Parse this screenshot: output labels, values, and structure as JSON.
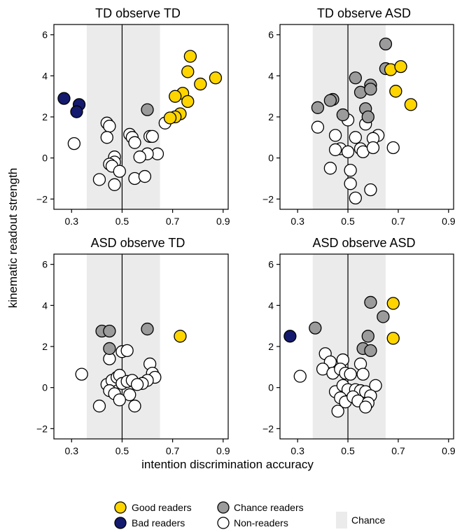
{
  "figure": {
    "xlabel": "intention discrimination accuracy",
    "ylabel": "kinematic readout strength",
    "xticks": [
      0.3,
      0.5,
      0.7,
      0.9
    ],
    "yticks": [
      -2,
      0,
      2,
      4,
      6
    ]
  },
  "legend": {
    "items": [
      {
        "label": "Good readers",
        "color": "#ffd500"
      },
      {
        "label": "Chance readers",
        "color": "#9b9b9b"
      },
      {
        "label": "Bad readers",
        "color": "#141a6e"
      },
      {
        "label": "Non-readers",
        "color": "#ffffff"
      },
      {
        "label": "Chance",
        "color": "#ebebeb"
      }
    ]
  },
  "colors": {
    "good": "#ffd500",
    "chance": "#9b9b9b",
    "bad": "#141a6e",
    "non": "#ffffff",
    "chance_band": "#ebebeb"
  },
  "chart_data": [
    {
      "type": "scatter",
      "title": "TD observe TD",
      "xlim": [
        0.23,
        0.92
      ],
      "ylim": [
        -2.5,
        6.5
      ],
      "chance_band": [
        0.36,
        0.65
      ],
      "vline": 0.5,
      "series": [
        {
          "name": "Good readers",
          "color": "#ffd500",
          "points": [
            [
              0.77,
              4.95
            ],
            [
              0.76,
              4.2
            ],
            [
              0.87,
              3.9
            ],
            [
              0.81,
              3.6
            ],
            [
              0.74,
              3.15
            ],
            [
              0.71,
              3.0
            ],
            [
              0.76,
              2.75
            ],
            [
              0.73,
              2.15
            ],
            [
              0.71,
              2.0
            ],
            [
              0.69,
              1.95
            ]
          ]
        },
        {
          "name": "Chance readers",
          "color": "#9b9b9b",
          "points": [
            [
              0.6,
              2.35
            ]
          ]
        },
        {
          "name": "Bad readers",
          "color": "#141a6e",
          "points": [
            [
              0.27,
              2.9
            ],
            [
              0.33,
              2.6
            ],
            [
              0.32,
              2.25
            ]
          ]
        },
        {
          "name": "Non-readers",
          "color": "#ffffff",
          "points": [
            [
              0.67,
              1.7
            ],
            [
              0.44,
              1.7
            ],
            [
              0.45,
              1.55
            ],
            [
              0.44,
              1.0
            ],
            [
              0.53,
              1.15
            ],
            [
              0.54,
              1.0
            ],
            [
              0.61,
              1.05
            ],
            [
              0.62,
              1.05
            ],
            [
              0.55,
              0.75
            ],
            [
              0.31,
              0.7
            ],
            [
              0.64,
              0.2
            ],
            [
              0.6,
              0.2
            ],
            [
              0.57,
              0.05
            ],
            [
              0.47,
              0.05
            ],
            [
              0.47,
              -0.2
            ],
            [
              0.45,
              -0.3
            ],
            [
              0.46,
              -0.4
            ],
            [
              0.49,
              -0.65
            ],
            [
              0.41,
              -1.05
            ],
            [
              0.55,
              -1.0
            ],
            [
              0.59,
              -0.9
            ],
            [
              0.47,
              -1.3
            ]
          ]
        }
      ]
    },
    {
      "type": "scatter",
      "title": "TD observe ASD",
      "xlim": [
        0.23,
        0.92
      ],
      "ylim": [
        -2.5,
        6.5
      ],
      "chance_band": [
        0.36,
        0.65
      ],
      "vline": 0.5,
      "series": [
        {
          "name": "Good readers",
          "color": "#ffd500",
          "points": [
            [
              0.67,
              4.3
            ],
            [
              0.71,
              4.45
            ],
            [
              0.69,
              3.25
            ],
            [
              0.75,
              2.6
            ]
          ]
        },
        {
          "name": "Chance readers",
          "color": "#9b9b9b",
          "points": [
            [
              0.65,
              5.55
            ],
            [
              0.65,
              4.35
            ],
            [
              0.53,
              3.9
            ],
            [
              0.44,
              2.85
            ],
            [
              0.43,
              2.8
            ],
            [
              0.55,
              3.2
            ],
            [
              0.59,
              3.55
            ],
            [
              0.59,
              3.35
            ],
            [
              0.38,
              2.45
            ],
            [
              0.48,
              2.1
            ],
            [
              0.57,
              2.4
            ],
            [
              0.58,
              2.0
            ]
          ]
        },
        {
          "name": "Bad readers",
          "color": "#141a6e",
          "points": []
        },
        {
          "name": "Non-readers",
          "color": "#ffffff",
          "points": [
            [
              0.38,
              1.5
            ],
            [
              0.5,
              1.85
            ],
            [
              0.57,
              1.65
            ],
            [
              0.62,
              1.1
            ],
            [
              0.45,
              1.1
            ],
            [
              0.53,
              1.0
            ],
            [
              0.6,
              0.95
            ],
            [
              0.47,
              0.45
            ],
            [
              0.45,
              0.4
            ],
            [
              0.5,
              0.3
            ],
            [
              0.55,
              0.45
            ],
            [
              0.56,
              0.3
            ],
            [
              0.6,
              0.5
            ],
            [
              0.68,
              0.5
            ],
            [
              0.43,
              -0.5
            ],
            [
              0.51,
              -0.6
            ],
            [
              0.51,
              -1.25
            ],
            [
              0.59,
              -1.55
            ],
            [
              0.53,
              -1.95
            ]
          ]
        }
      ]
    },
    {
      "type": "scatter",
      "title": "ASD observe TD",
      "xlim": [
        0.23,
        0.92
      ],
      "ylim": [
        -2.5,
        6.5
      ],
      "chance_band": [
        0.36,
        0.65
      ],
      "vline": 0.5,
      "series": [
        {
          "name": "Good readers",
          "color": "#ffd500",
          "points": [
            [
              0.73,
              2.5
            ]
          ]
        },
        {
          "name": "Chance readers",
          "color": "#9b9b9b",
          "points": [
            [
              0.42,
              2.75
            ],
            [
              0.45,
              2.75
            ],
            [
              0.6,
              2.85
            ],
            [
              0.45,
              1.9
            ]
          ]
        },
        {
          "name": "Bad readers",
          "color": "#141a6e",
          "points": []
        },
        {
          "name": "Non-readers",
          "color": "#ffffff",
          "points": [
            [
              0.5,
              1.75
            ],
            [
              0.52,
              1.8
            ],
            [
              0.45,
              1.4
            ],
            [
              0.61,
              1.15
            ],
            [
              0.62,
              0.7
            ],
            [
              0.63,
              0.5
            ],
            [
              0.6,
              0.35
            ],
            [
              0.58,
              0.2
            ],
            [
              0.34,
              0.65
            ],
            [
              0.44,
              0.15
            ],
            [
              0.46,
              0.35
            ],
            [
              0.48,
              0.5
            ],
            [
              0.49,
              0.6
            ],
            [
              0.5,
              0.2
            ],
            [
              0.52,
              0.3
            ],
            [
              0.54,
              0.35
            ],
            [
              0.56,
              0.15
            ],
            [
              0.45,
              -0.15
            ],
            [
              0.47,
              -0.3
            ],
            [
              0.53,
              -0.35
            ],
            [
              0.49,
              -0.6
            ],
            [
              0.41,
              -0.9
            ],
            [
              0.55,
              -0.9
            ]
          ]
        }
      ]
    },
    {
      "type": "scatter",
      "title": "ASD observe ASD",
      "xlim": [
        0.23,
        0.92
      ],
      "ylim": [
        -2.5,
        6.5
      ],
      "chance_band": [
        0.36,
        0.65
      ],
      "vline": 0.5,
      "series": [
        {
          "name": "Good readers",
          "color": "#ffd500",
          "points": [
            [
              0.68,
              4.1
            ],
            [
              0.68,
              2.4
            ]
          ]
        },
        {
          "name": "Chance readers",
          "color": "#9b9b9b",
          "points": [
            [
              0.59,
              4.15
            ],
            [
              0.64,
              3.45
            ],
            [
              0.37,
              2.9
            ],
            [
              0.58,
              2.5
            ],
            [
              0.56,
              1.9
            ],
            [
              0.59,
              1.8
            ]
          ]
        },
        {
          "name": "Bad readers",
          "color": "#141a6e",
          "points": [
            [
              0.27,
              2.5
            ]
          ]
        },
        {
          "name": "Non-readers",
          "color": "#ffffff",
          "points": [
            [
              0.41,
              1.65
            ],
            [
              0.43,
              1.25
            ],
            [
              0.48,
              1.35
            ],
            [
              0.4,
              0.9
            ],
            [
              0.44,
              0.7
            ],
            [
              0.47,
              0.9
            ],
            [
              0.49,
              0.7
            ],
            [
              0.51,
              0.65
            ],
            [
              0.55,
              1.15
            ],
            [
              0.56,
              0.65
            ],
            [
              0.61,
              0.1
            ],
            [
              0.31,
              0.55
            ],
            [
              0.45,
              -0.2
            ],
            [
              0.48,
              0.1
            ],
            [
              0.5,
              -0.1
            ],
            [
              0.53,
              -0.1
            ],
            [
              0.55,
              -0.15
            ],
            [
              0.57,
              -0.2
            ],
            [
              0.59,
              -0.4
            ],
            [
              0.47,
              -0.5
            ],
            [
              0.49,
              -0.7
            ],
            [
              0.52,
              -0.45
            ],
            [
              0.54,
              -0.65
            ],
            [
              0.58,
              -0.75
            ],
            [
              0.46,
              -1.15
            ],
            [
              0.57,
              -0.95
            ]
          ]
        }
      ]
    }
  ]
}
